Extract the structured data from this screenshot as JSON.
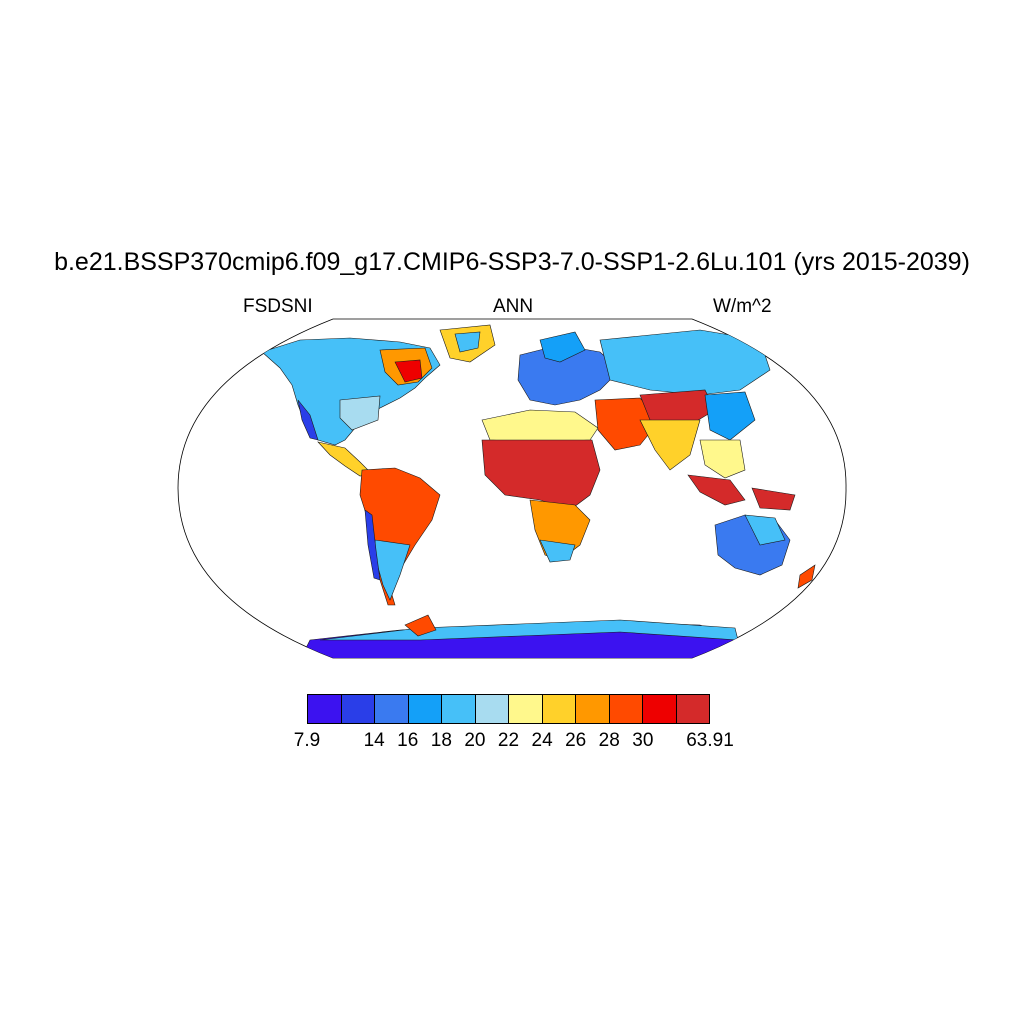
{
  "title": "b.e21.BSSP370cmip6.f09_g17.CMIP6-SSP3-7.0-SSP1-2.6Lu.101 (yrs 2015-2039)",
  "variable": "FSDSNI",
  "season": "ANN",
  "units": "W/m^2",
  "colorbar": {
    "colors": [
      "#3c12f0",
      "#2a3ee8",
      "#3a7af0",
      "#14a0f8",
      "#46c0f8",
      "#a8dcf0",
      "#fff88c",
      "#ffd12a",
      "#ff9800",
      "#ff4a00",
      "#ee0000",
      "#d42a2a"
    ],
    "labels": [
      "7.9",
      "14",
      "16",
      "18",
      "20",
      "22",
      "24",
      "26",
      "28",
      "30",
      "63.91"
    ],
    "label_boundary_index": [
      0,
      2,
      3,
      4,
      5,
      6,
      7,
      8,
      9,
      10,
      12
    ]
  }
}
